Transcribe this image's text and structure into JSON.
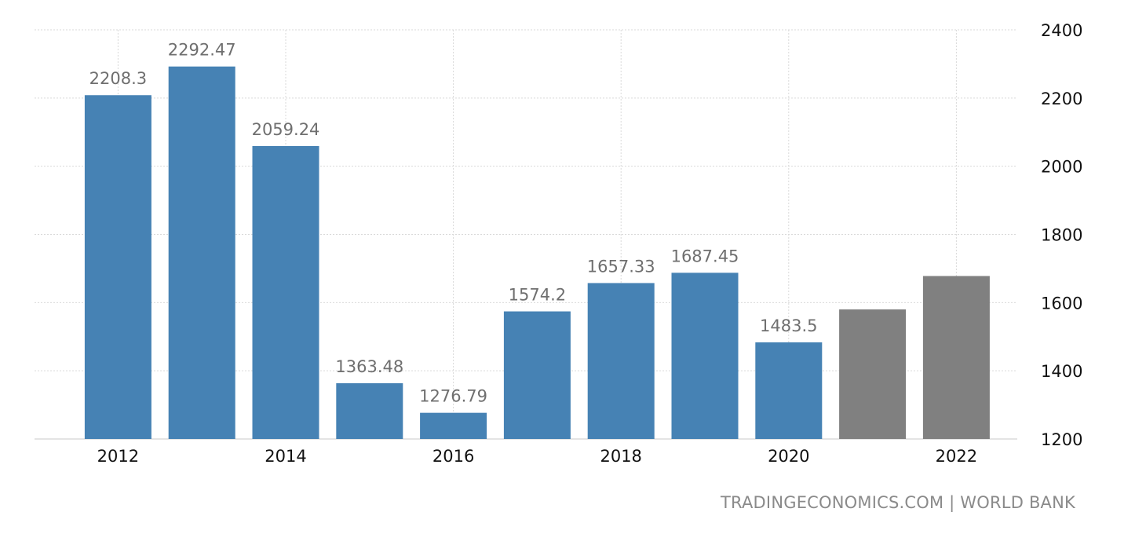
{
  "chart_data": {
    "type": "bar",
    "categories": [
      "2012",
      "2013",
      "2014",
      "2015",
      "2016",
      "2017",
      "2018",
      "2019",
      "2020",
      "2021",
      "2022"
    ],
    "values": [
      2208.3,
      2292.47,
      2059.24,
      1363.48,
      1276.79,
      1574.2,
      1657.33,
      1687.45,
      1483.5,
      1580,
      1678
    ],
    "value_labels": [
      "2208.3",
      "2292.47",
      "2059.24",
      "1363.48",
      "1276.79",
      "1574.2",
      "1657.33",
      "1687.45",
      "1483.5",
      "",
      ""
    ],
    "x_tick_labels": [
      "2012",
      "",
      "2014",
      "",
      "2016",
      "",
      "2018",
      "",
      "2020",
      "",
      "2022"
    ],
    "y_ticks": [
      1200,
      1400,
      1600,
      1800,
      2000,
      2200,
      2400
    ],
    "ylim": [
      1200,
      2400
    ],
    "y_axis_position": "right",
    "grid": true,
    "colors": {
      "actual": "#4682b4",
      "forecast": "#808080"
    },
    "bar_kinds": [
      "actual",
      "actual",
      "actual",
      "actual",
      "actual",
      "actual",
      "actual",
      "actual",
      "actual",
      "forecast",
      "forecast"
    ],
    "title": "",
    "xlabel": "",
    "ylabel": ""
  },
  "footer": {
    "source": "TRADINGECONOMICS.COM | WORLD BANK"
  }
}
